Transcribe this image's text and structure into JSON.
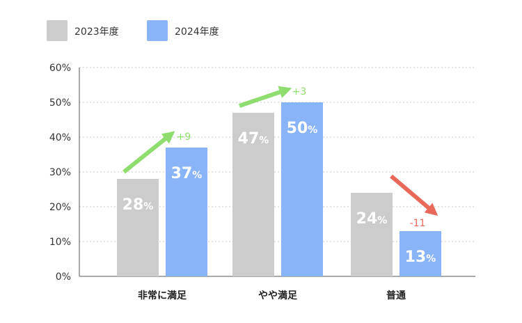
{
  "chart_data": {
    "type": "bar",
    "categories": [
      "非常に満足",
      "やや満足",
      "普通"
    ],
    "series": [
      {
        "name": "2023年度",
        "color": "#cccccc",
        "values": [
          28,
          47,
          24
        ]
      },
      {
        "name": "2024年度",
        "color": "#8ab4f8",
        "values": [
          37,
          50,
          13
        ]
      }
    ],
    "value_suffix": "%",
    "ylim": [
      0,
      60
    ],
    "yticks": [
      0,
      10,
      20,
      30,
      40,
      50,
      60
    ],
    "ytick_labels": [
      "0%",
      "10%",
      "20%",
      "30%",
      "40%",
      "50%",
      "60%"
    ],
    "grid": true,
    "legend_position": "top-left",
    "changes": [
      {
        "label": "+9",
        "direction": "up",
        "color": "#8fdd6f"
      },
      {
        "label": "+3",
        "direction": "up",
        "color": "#8fdd6f"
      },
      {
        "label": "-11",
        "direction": "down",
        "color": "#e8685a"
      }
    ]
  }
}
